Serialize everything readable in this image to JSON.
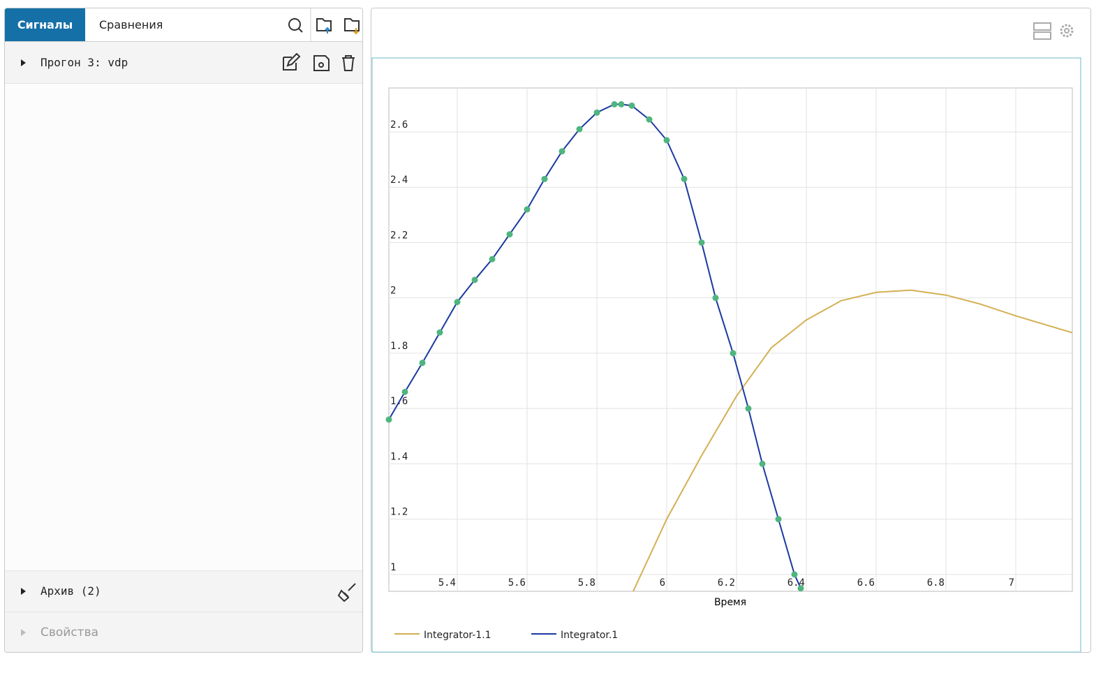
{
  "tabs": [
    "Сигналы",
    "Сравнения"
  ],
  "tree": {
    "run": "Прогон 3: vdp",
    "archive": "Архив (2)",
    "properties": "Свойства"
  },
  "chart_data": {
    "type": "line",
    "x_label": "Время",
    "xlim": [
      5.204,
      7.162
    ],
    "ylim": [
      0.939,
      2.759
    ],
    "xticks": [
      5.4,
      5.6,
      5.8,
      6,
      6.2,
      6.4,
      6.6,
      6.8,
      7
    ],
    "yticks": [
      1,
      1.2,
      1.4,
      1.6,
      1.8,
      2,
      2.2,
      2.4,
      2.6
    ],
    "grid": true,
    "legend": "bottom-left",
    "series": [
      {
        "name": "Integrator-1.1",
        "color": "#d4b054",
        "x": [
          5.904,
          6.0,
          6.1,
          6.2,
          6.3,
          6.4,
          6.5,
          6.6,
          6.7,
          6.8,
          6.9,
          7.0,
          7.162
        ],
        "values": [
          0.939,
          1.2,
          1.43,
          1.645,
          1.82,
          1.92,
          1.99,
          2.02,
          2.028,
          2.01,
          1.977,
          1.935,
          1.874
        ]
      },
      {
        "name": "Integrator.1",
        "color": "#1a3aa0",
        "marker_color": "#4fb57f",
        "x": [
          5.204,
          5.25,
          5.3,
          5.35,
          5.4,
          5.45,
          5.5,
          5.55,
          5.6,
          5.65,
          5.7,
          5.75,
          5.8,
          5.85,
          5.87,
          5.9,
          5.95,
          6.0,
          6.05,
          6.1,
          6.14,
          6.19,
          6.234,
          6.274,
          6.32,
          6.366,
          6.384
        ],
        "values": [
          1.56,
          1.66,
          1.765,
          1.875,
          1.985,
          2.065,
          2.14,
          2.23,
          2.32,
          2.43,
          2.53,
          2.61,
          2.67,
          2.7,
          2.7,
          2.695,
          2.645,
          2.57,
          2.43,
          2.2,
          2.0,
          1.8,
          1.6,
          1.4,
          1.2,
          1.0,
          0.95
        ]
      }
    ]
  }
}
